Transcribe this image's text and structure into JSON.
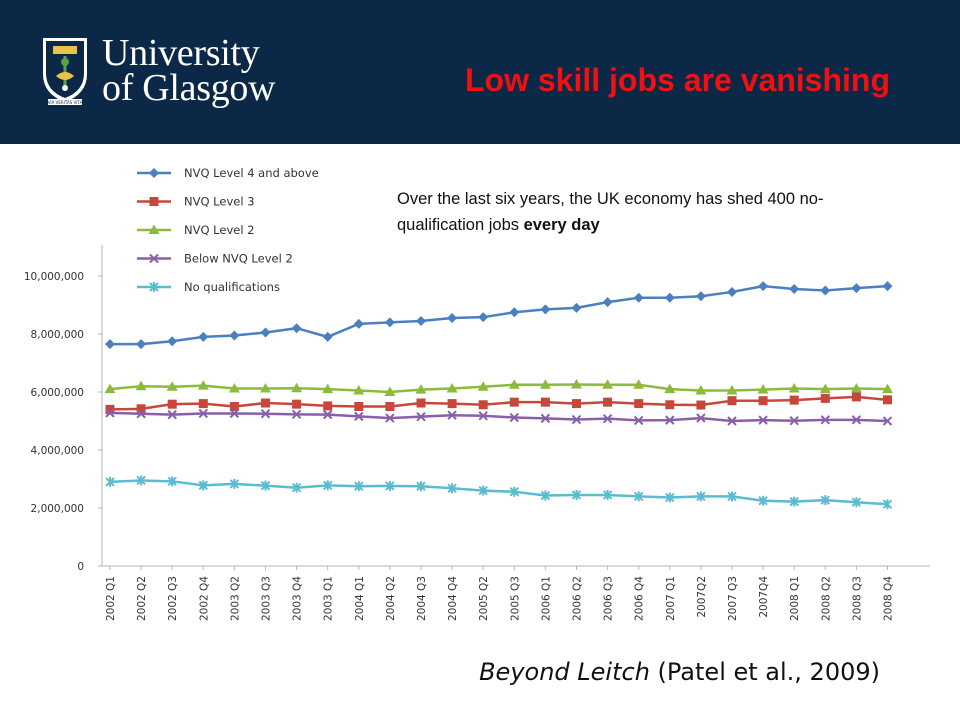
{
  "header": {
    "university_line1": "University",
    "university_line2": "of Glasgow",
    "motto": "VIA VERITAS VITA",
    "title": "Low skill jobs are vanishing"
  },
  "note": {
    "text": "Over the last six years, the UK economy has shed 400 no-qualification jobs ",
    "emphasis": "every day"
  },
  "citation": {
    "title": "Beyond Leitch",
    "authors": "(Patel et al., 2009)"
  },
  "chart_data": {
    "type": "line",
    "categories": [
      "2002 Q1",
      "2002 Q2",
      "2002 Q3",
      "2002 Q4",
      "2003 Q2",
      "2003 Q3",
      "2003 Q4",
      "2003 Q1",
      "2004 Q1",
      "2004 Q2",
      "2004 Q3",
      "2004 Q4",
      "2005 Q2",
      "2005 Q3",
      "2006 Q1",
      "2006 Q2",
      "2006 Q3",
      "2006 Q4",
      "2007 Q1",
      "2007Q2",
      "2007 Q3",
      "2007Q4",
      "2008 Q1",
      "2008 Q2",
      "2008 Q3",
      "2008 Q4"
    ],
    "y_ticks": [
      "0",
      "2,000,000",
      "4,000,000",
      "6,000,000",
      "8,000,000",
      "10,000,000"
    ],
    "ylim": [
      0,
      11000000
    ],
    "legend_position": "top-left",
    "grid": false,
    "series": [
      {
        "name": "NVQ Level 4 and above",
        "color": "#4a7fc0",
        "marker": "diamond",
        "values": [
          7650000,
          7650000,
          7750000,
          7900000,
          7950000,
          8050000,
          8200000,
          7900000,
          8350000,
          8400000,
          8450000,
          8550000,
          8580000,
          8750000,
          8850000,
          8900000,
          9100000,
          9250000,
          9250000,
          9300000,
          9450000,
          9650000,
          9550000,
          9500000,
          9580000,
          9650000
        ]
      },
      {
        "name": "NVQ Level 3",
        "color": "#c8473b",
        "marker": "square",
        "values": [
          5400000,
          5420000,
          5580000,
          5600000,
          5500000,
          5620000,
          5580000,
          5520000,
          5500000,
          5500000,
          5620000,
          5600000,
          5560000,
          5650000,
          5650000,
          5600000,
          5650000,
          5600000,
          5560000,
          5550000,
          5700000,
          5700000,
          5720000,
          5780000,
          5830000,
          5730000
        ]
      },
      {
        "name": "NVQ Level 2",
        "color": "#8cbb3c",
        "marker": "triangle",
        "values": [
          6100000,
          6200000,
          6180000,
          6220000,
          6120000,
          6120000,
          6130000,
          6100000,
          6050000,
          6000000,
          6080000,
          6120000,
          6180000,
          6250000,
          6250000,
          6260000,
          6250000,
          6250000,
          6100000,
          6050000,
          6050000,
          6080000,
          6120000,
          6100000,
          6120000,
          6100000
        ]
      },
      {
        "name": "Below NVQ Level 2",
        "color": "#8a5fa9",
        "marker": "cross",
        "values": [
          5280000,
          5250000,
          5220000,
          5260000,
          5260000,
          5250000,
          5230000,
          5220000,
          5160000,
          5100000,
          5150000,
          5200000,
          5180000,
          5120000,
          5090000,
          5050000,
          5080000,
          5020000,
          5030000,
          5100000,
          5000000,
          5030000,
          5010000,
          5040000,
          5040000,
          5000000
        ]
      },
      {
        "name": "No qualifications",
        "color": "#5bbcd0",
        "marker": "star",
        "values": [
          2900000,
          2950000,
          2920000,
          2780000,
          2830000,
          2770000,
          2700000,
          2780000,
          2750000,
          2760000,
          2750000,
          2680000,
          2600000,
          2560000,
          2430000,
          2450000,
          2450000,
          2400000,
          2360000,
          2400000,
          2400000,
          2250000,
          2220000,
          2270000,
          2200000,
          2130000
        ]
      }
    ]
  }
}
